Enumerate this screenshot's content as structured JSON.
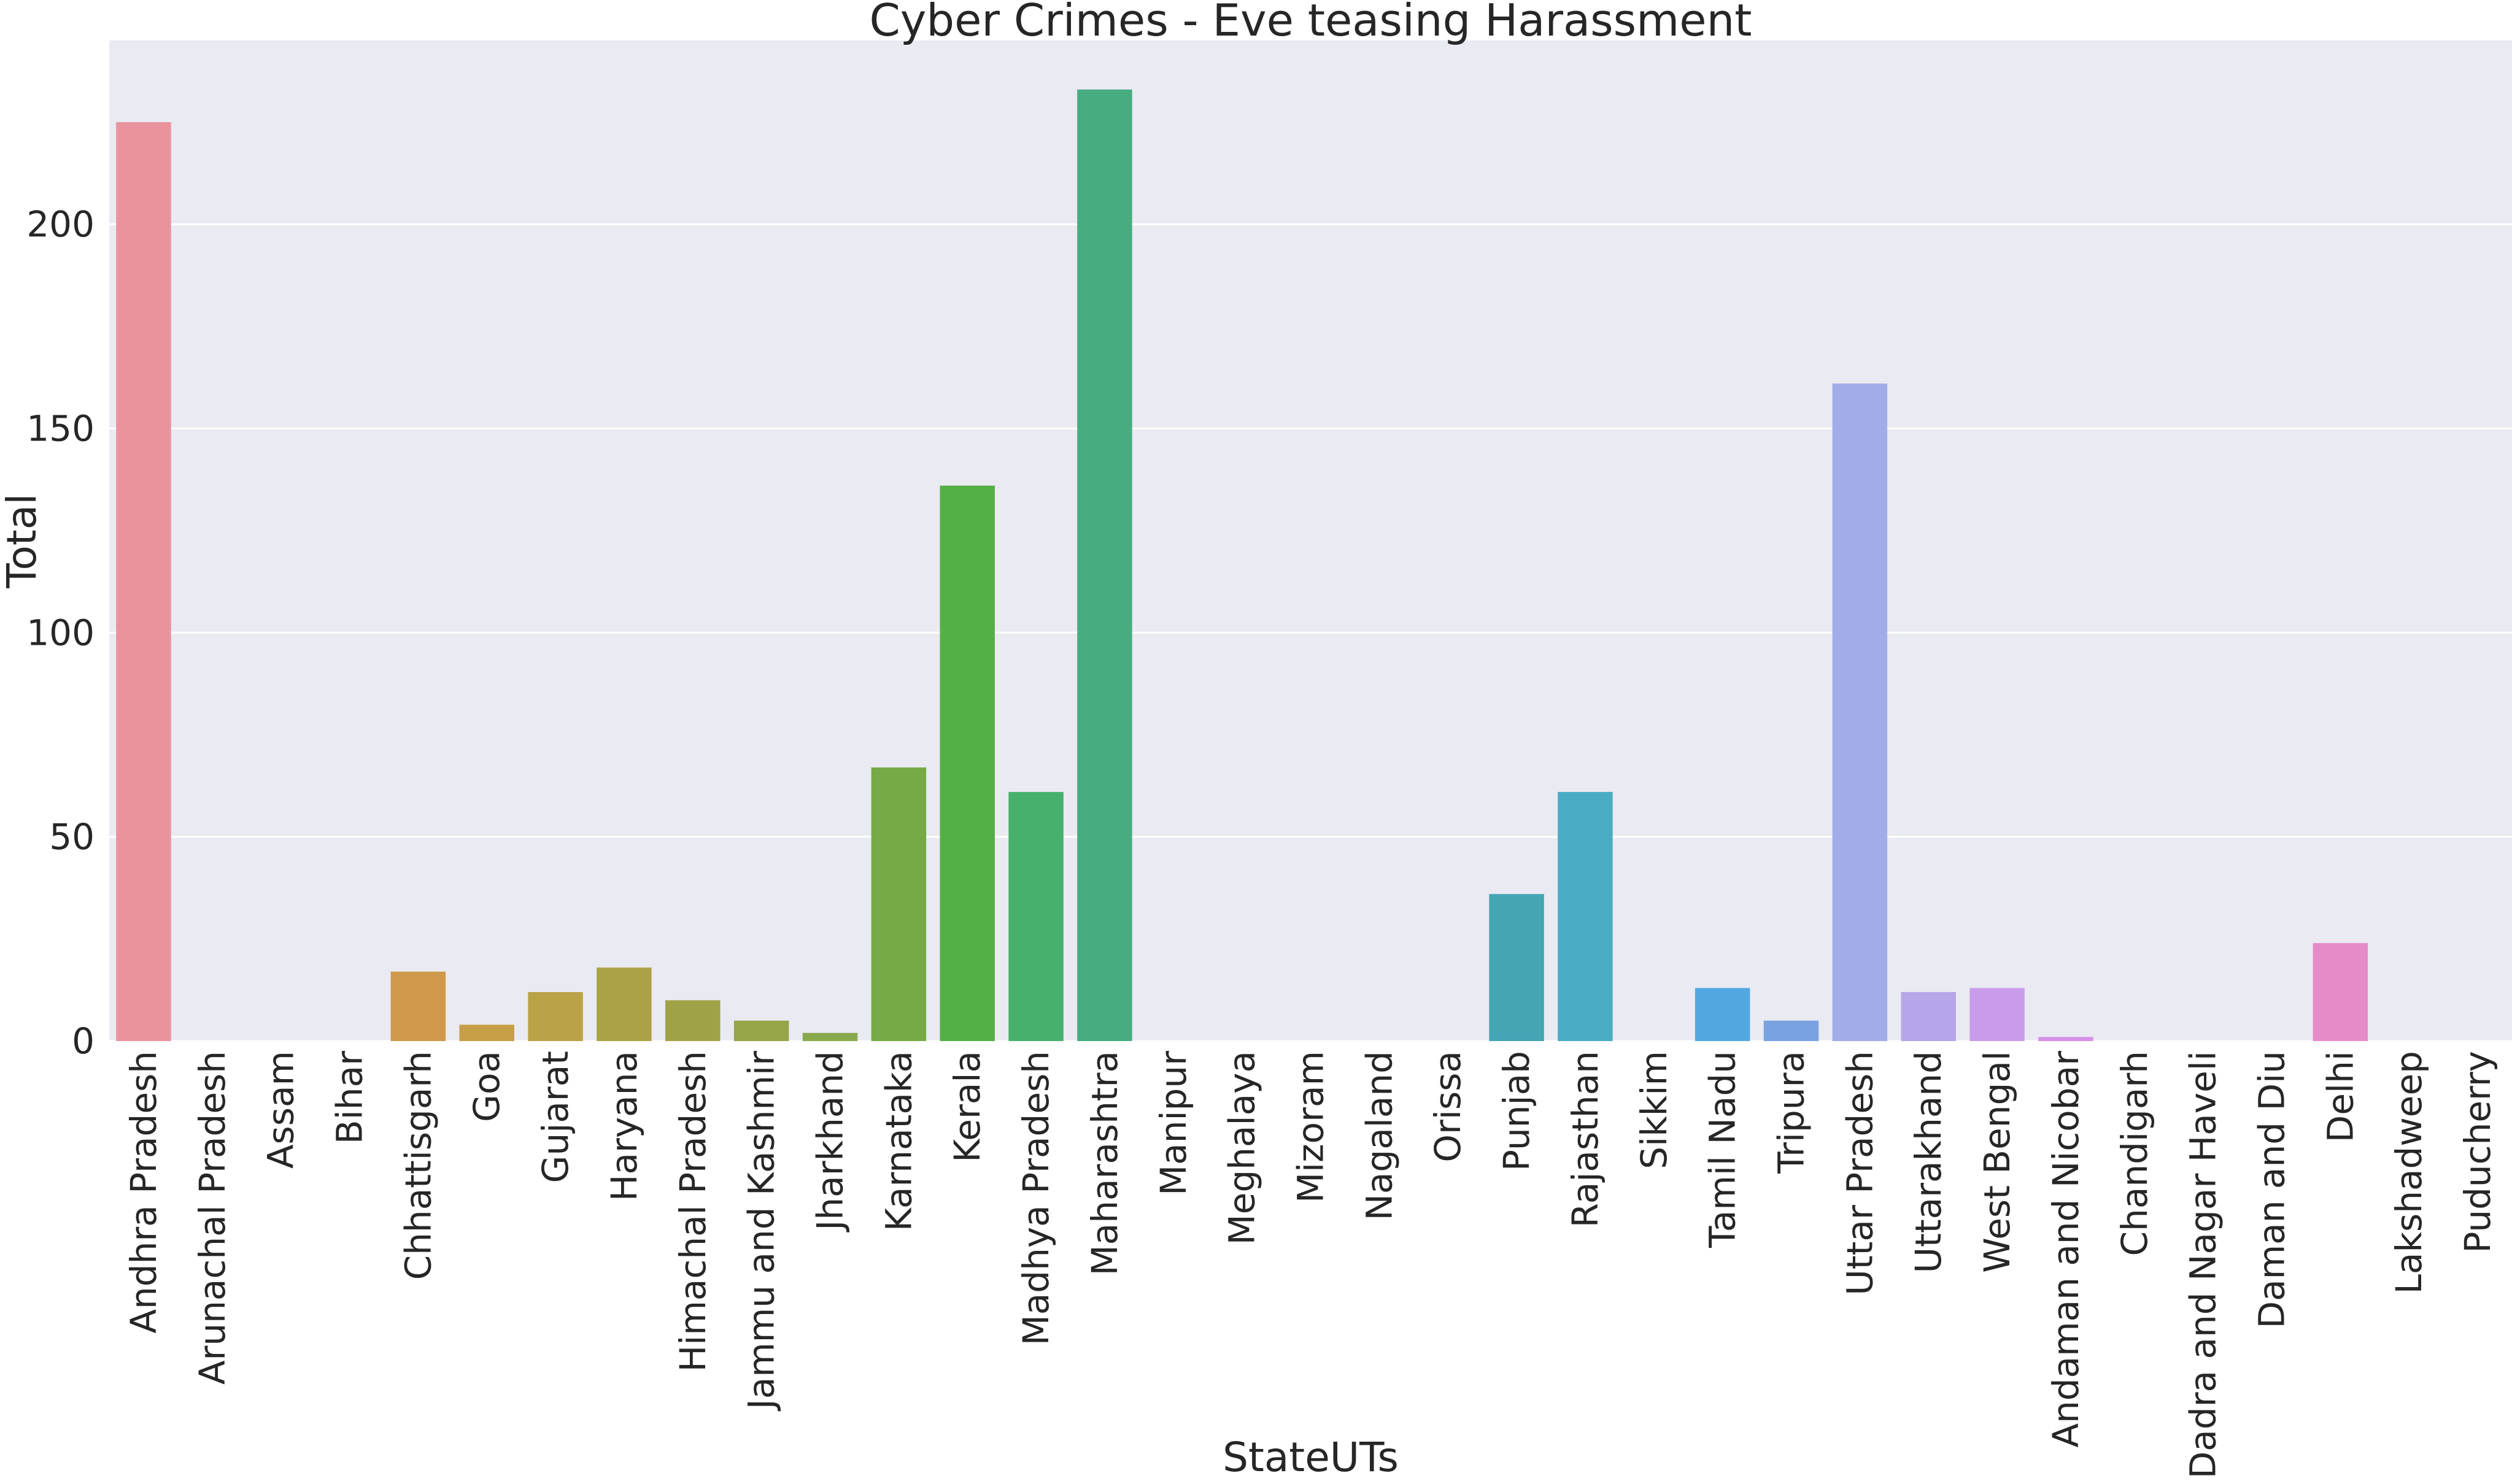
{
  "chart_data": {
    "type": "bar",
    "title": "Cyber Crimes - Eve teasing Harassment",
    "xlabel": "StateUTs",
    "ylabel": "Total",
    "ylim": [
      0,
      245
    ],
    "yticks": [
      0,
      50,
      100,
      150,
      200
    ],
    "grid": true,
    "legend": "none",
    "background": "#eaeaf2",
    "gridColor": "#ffffff",
    "categories": [
      "Andhra Pradesh",
      "Arunachal Pradesh",
      "Assam",
      "Bihar",
      "Chhattisgarh",
      "Goa",
      "Gujarat",
      "Haryana",
      "Himachal Pradesh",
      "Jammu and Kashmir",
      "Jharkhand",
      "Karnataka",
      "Kerala",
      "Madhya Pradesh",
      "Maharashtra",
      "Manipur",
      "Meghalaya",
      "Mizoram",
      "Nagaland",
      "Orissa",
      "Punjab",
      "Rajasthan",
      "Sikkim",
      "Tamil Nadu",
      "Tripura",
      "Uttar Pradesh",
      "Uttarakhand",
      "West Bengal",
      "Andaman and Nicobar",
      "Chandigarh",
      "Dadra and Nagar Haveli",
      "Daman and Diu",
      "Delhi",
      "Lakshadweep",
      "Puducherry"
    ],
    "values": [
      225,
      0,
      0,
      0,
      17,
      4,
      12,
      18,
      10,
      5,
      2,
      67,
      136,
      61,
      233,
      0,
      0,
      0,
      0,
      0,
      36,
      61,
      0,
      13,
      5,
      161,
      12,
      13,
      1,
      0,
      0,
      0,
      24,
      0,
      0
    ],
    "colors": [
      "#e8939d",
      "#e59a86",
      "#df9e6e",
      "#d99e55",
      "#d0984a",
      "#c69e46",
      "#b9a346",
      "#aba247",
      "#a0a247",
      "#95a548",
      "#88a94b",
      "#76aa46",
      "#53b046",
      "#47b06c",
      "#47ad81",
      "#48ad8f",
      "#48ae98",
      "#4aaea2",
      "#4ab0ad",
      "#44a9b0",
      "#44a5b5",
      "#4aacc4",
      "#52addb",
      "#53a7e1",
      "#78a3e0",
      "#a2ace8",
      "#b6a5e8",
      "#c99ceb",
      "#d78fe8",
      "#e290dc",
      "#e590cf",
      "#e58dc5",
      "#e68bc8",
      "#e88fba",
      "#e894ac"
    ]
  }
}
